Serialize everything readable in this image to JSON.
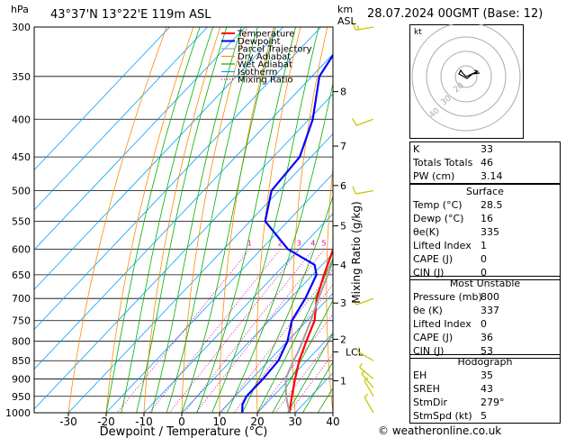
{
  "header": {
    "location": "43°37'N  13°22'E  119m  ASL",
    "date": "28.07.2024  00GMT  (Base: 12)",
    "hpa_label": "hPa",
    "km_label": "km",
    "asl_label": "ASL"
  },
  "chart_data": {
    "type": "line",
    "xlabel": "Dewpoint / Temperature (°C)",
    "ylabel_right": "Mixing Ratio (g/kg)",
    "x_ticks": [
      -30,
      -20,
      -10,
      0,
      10,
      20,
      30,
      40
    ],
    "pressure_levels": [
      300,
      350,
      400,
      450,
      500,
      550,
      600,
      650,
      700,
      750,
      800,
      850,
      900,
      950,
      1000
    ],
    "km_ticks": [
      {
        "label": "8",
        "p": 367
      },
      {
        "label": "7",
        "p": 435
      },
      {
        "label": "6",
        "p": 492
      },
      {
        "label": "5",
        "p": 558
      },
      {
        "label": "4",
        "p": 630
      },
      {
        "label": "3",
        "p": 710
      },
      {
        "label": "2",
        "p": 795
      },
      {
        "label": "1",
        "p": 905
      }
    ],
    "lcl": {
      "label": "LCL",
      "p": 827
    },
    "mixing_ratio_labels": [
      "1",
      "2",
      "3",
      "4",
      "5",
      "8",
      "10",
      "15",
      "20",
      "25"
    ],
    "legend": [
      "Temperature",
      "Dewpoint",
      "Parcel Trajectory",
      "Dry Adiabat",
      "Wet Adiabat",
      "Isotherm",
      "Mixing Ratio"
    ],
    "series": [
      {
        "name": "Temperature",
        "color": "#ff0000",
        "points": [
          [
            1000,
            28.5
          ],
          [
            950,
            25
          ],
          [
            900,
            21.5
          ],
          [
            850,
            18
          ],
          [
            800,
            15
          ],
          [
            750,
            12
          ],
          [
            700,
            7
          ],
          [
            650,
            3
          ],
          [
            600,
            -1
          ],
          [
            550,
            -5
          ],
          [
            500,
            -9.5
          ],
          [
            450,
            -15
          ],
          [
            400,
            -21
          ],
          [
            350,
            -29
          ],
          [
            300,
            -38
          ]
        ]
      },
      {
        "name": "Dewpoint",
        "color": "#0000ff",
        "points": [
          [
            1000,
            16
          ],
          [
            975,
            14
          ],
          [
            950,
            13
          ],
          [
            900,
            13
          ],
          [
            850,
            12.5
          ],
          [
            800,
            10
          ],
          [
            750,
            6
          ],
          [
            700,
            4
          ],
          [
            650,
            1
          ],
          [
            630,
            -2
          ],
          [
            600,
            -13
          ],
          [
            550,
            -26
          ],
          [
            500,
            -32
          ],
          [
            450,
            -33
          ],
          [
            400,
            -39
          ],
          [
            350,
            -48
          ],
          [
            300,
            -52
          ]
        ]
      },
      {
        "name": "Parcel Trajectory",
        "color": "#a0a0a0",
        "points": [
          [
            1000,
            28.5
          ],
          [
            950,
            23.5
          ],
          [
            900,
            19
          ],
          [
            850,
            16.5
          ],
          [
            827,
            15.5
          ],
          [
            800,
            14
          ],
          [
            750,
            11
          ],
          [
            700,
            7.5
          ],
          [
            650,
            4
          ],
          [
            600,
            0
          ],
          [
            550,
            -4
          ],
          [
            500,
            -9
          ],
          [
            450,
            -14.5
          ],
          [
            400,
            -21
          ],
          [
            350,
            -28.5
          ],
          [
            300,
            -37
          ]
        ]
      }
    ],
    "colors": {
      "dry_adiabat": "#ff8c00",
      "wet_adiabat": "#00b000",
      "isotherm": "#00a0ff",
      "mixing_ratio": "#e000a0",
      "wind": "#c8c800"
    }
  },
  "wind_barbs": [
    {
      "p": 300,
      "dir": 260,
      "spd": 15
    },
    {
      "p": 400,
      "dir": 250,
      "spd": 10
    },
    {
      "p": 500,
      "dir": 260,
      "spd": 10
    },
    {
      "p": 700,
      "dir": 250,
      "spd": 5
    },
    {
      "p": 850,
      "dir": 300,
      "spd": 5
    },
    {
      "p": 900,
      "dir": 310,
      "spd": 5
    },
    {
      "p": 925,
      "dir": 320,
      "spd": 5
    },
    {
      "p": 950,
      "dir": 330,
      "spd": 5
    },
    {
      "p": 1000,
      "dir": 330,
      "spd": 5
    }
  ],
  "hodograph": {
    "label": "kt",
    "rings": [
      "20",
      "30",
      "40"
    ]
  },
  "indices": [
    {
      "k": "K",
      "v": "33"
    },
    {
      "k": "Totals Totals",
      "v": "46"
    },
    {
      "k": "PW (cm)",
      "v": "3.14"
    }
  ],
  "surface": {
    "title": "Surface",
    "rows": [
      {
        "k": "Temp (°C)",
        "v": "28.5"
      },
      {
        "k": "Dewp (°C)",
        "v": "16"
      },
      {
        "k": "θe(K)",
        "v": "335"
      },
      {
        "k": "Lifted Index",
        "v": "1"
      },
      {
        "k": "CAPE (J)",
        "v": "0"
      },
      {
        "k": "CIN (J)",
        "v": "0"
      }
    ]
  },
  "unstable": {
    "title": "Most Unstable",
    "rows": [
      {
        "k": "Pressure (mb)",
        "v": "800"
      },
      {
        "k": "θe (K)",
        "v": "337"
      },
      {
        "k": "Lifted Index",
        "v": "0"
      },
      {
        "k": "CAPE (J)",
        "v": "36"
      },
      {
        "k": "CIN (J)",
        "v": "53"
      }
    ]
  },
  "hodo_table": {
    "title": "Hodograph",
    "rows": [
      {
        "k": "EH",
        "v": "35"
      },
      {
        "k": "SREH",
        "v": "43"
      },
      {
        "k": "StmDir",
        "v": "279°"
      },
      {
        "k": "StmSpd (kt)",
        "v": "5"
      }
    ]
  },
  "footer": "© weatheronline.co.uk"
}
